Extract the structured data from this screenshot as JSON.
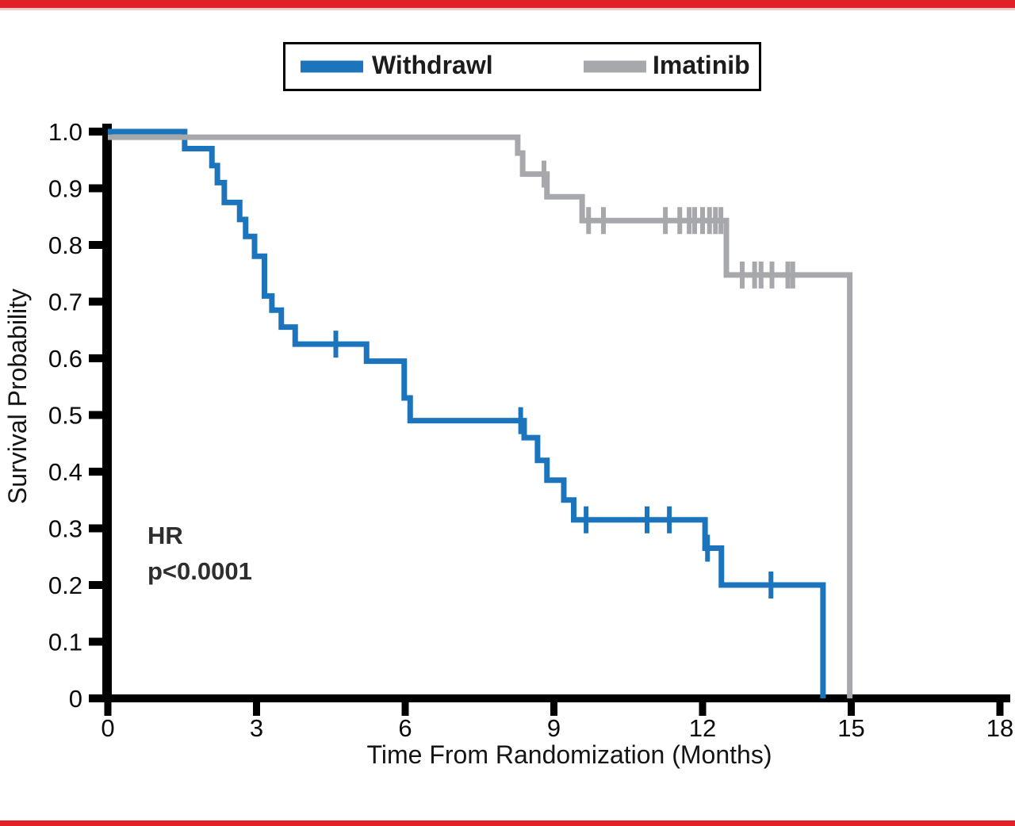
{
  "rules": {
    "color": "#e22028"
  },
  "legend": {
    "items": [
      {
        "label": "Withdrawl"
      },
      {
        "label": "Imatinib"
      }
    ]
  },
  "chart_data": {
    "type": "line",
    "subtype": "kaplan_meier_step",
    "title": "",
    "xlabel": "Time From Randomization (Months)",
    "ylabel": "Survival Probability",
    "xlim": [
      0,
      18
    ],
    "ylim": [
      0,
      1.0
    ],
    "x_ticks": [
      0,
      3,
      6,
      9,
      12,
      15,
      18
    ],
    "y_ticks": [
      0,
      0.1,
      0.2,
      0.3,
      0.4,
      0.5,
      0.6,
      0.7,
      0.8,
      0.9,
      1.0
    ],
    "y_tick_labels": [
      "0",
      "0.1",
      "0.2",
      "0.3",
      "0.4",
      "0.5",
      "0.6",
      "0.7",
      "0.8",
      "0.9",
      "1.0"
    ],
    "grid": false,
    "legend_position": "top-center",
    "annotations": [
      "HR",
      "p<0.0001"
    ],
    "series": [
      {
        "name": "Withdrawl",
        "color": "#1c75bc",
        "steps": [
          [
            0,
            1.0
          ],
          [
            1.55,
            0.97
          ],
          [
            2.1,
            0.94
          ],
          [
            2.21,
            0.91
          ],
          [
            2.35,
            0.875
          ],
          [
            2.66,
            0.845
          ],
          [
            2.78,
            0.815
          ],
          [
            2.96,
            0.78
          ],
          [
            3.16,
            0.71
          ],
          [
            3.31,
            0.685
          ],
          [
            3.5,
            0.655
          ],
          [
            3.78,
            0.625
          ],
          [
            5.22,
            0.595
          ],
          [
            5.98,
            0.53
          ],
          [
            6.1,
            0.49
          ],
          [
            8.4,
            0.46
          ],
          [
            8.67,
            0.42
          ],
          [
            8.86,
            0.385
          ],
          [
            9.2,
            0.35
          ],
          [
            9.4,
            0.315
          ],
          [
            12.05,
            0.265
          ],
          [
            12.38,
            0.2
          ],
          [
            14.43,
            0
          ]
        ],
        "censor_marks": [
          [
            4.6,
            0.625
          ],
          [
            8.33,
            0.49
          ],
          [
            9.65,
            0.315
          ],
          [
            10.88,
            0.315
          ],
          [
            11.33,
            0.315
          ],
          [
            12.1,
            0.265
          ],
          [
            13.38,
            0.2
          ]
        ]
      },
      {
        "name": "Imatinib",
        "color": "#a6a8ab",
        "steps": [
          [
            0,
            0.99
          ],
          [
            8.27,
            0.962
          ],
          [
            8.37,
            0.925
          ],
          [
            8.86,
            0.885
          ],
          [
            9.57,
            0.843
          ],
          [
            12.48,
            0.747
          ],
          [
            14.97,
            0
          ]
        ],
        "censor_marks": [
          [
            8.8,
            0.925
          ],
          [
            9.7,
            0.843
          ],
          [
            10.0,
            0.843
          ],
          [
            11.25,
            0.843
          ],
          [
            11.54,
            0.843
          ],
          [
            11.73,
            0.843
          ],
          [
            11.84,
            0.843
          ],
          [
            12.0,
            0.843
          ],
          [
            12.14,
            0.843
          ],
          [
            12.26,
            0.843
          ],
          [
            12.37,
            0.843
          ],
          [
            12.8,
            0.747
          ],
          [
            13.05,
            0.747
          ],
          [
            13.18,
            0.747
          ],
          [
            13.4,
            0.747
          ],
          [
            13.72,
            0.747
          ],
          [
            13.82,
            0.747
          ]
        ]
      }
    ]
  }
}
